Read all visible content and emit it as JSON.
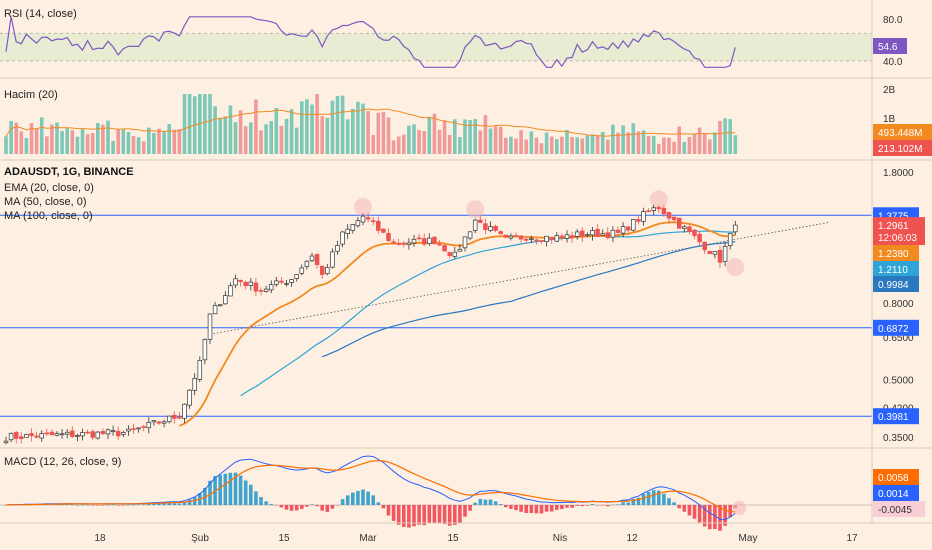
{
  "colors": {
    "background": "#fdf0e2",
    "up": "#26a69a",
    "down": "#ef5350",
    "ema20": "#f28a20",
    "ma50": "#2fa4d6",
    "ma100": "#2a78c0",
    "rsi_line": "#7e57c2",
    "rsi_band": "#e8ecd2",
    "hline": "#2962ff",
    "trendline": "#555555",
    "macd": "#2962ff",
    "signal": "#ff6d00",
    "hist_pos": "#2196c9",
    "hist_neg": "#ef3b4a"
  },
  "rsi": {
    "title": "RSI (14, close)",
    "ticks": [
      "80.0",
      "40.0"
    ],
    "value_badge": "54.6",
    "band": [
      40,
      70
    ]
  },
  "volume": {
    "title": "Hacim (20)",
    "ticks": [
      "2B",
      "1B"
    ],
    "ma_badge": "493.448M",
    "last_badge": "213.102M"
  },
  "price": {
    "symbol": "ADAUSDT, 1G, BINANCE",
    "legend": [
      "EMA (20, close, 0)",
      "MA (50, close, 0)",
      "MA (100, close, 0)"
    ],
    "ticks": [
      "1.8000",
      "0.8000",
      "0.6500",
      "0.5000",
      "0.4200",
      "0.3500"
    ],
    "tick_values": [
      1.8,
      0.8,
      0.65,
      0.5,
      0.42,
      0.35
    ],
    "last_price": "1.2961",
    "countdown": "12:06:03",
    "ema20_badge": "1.2380",
    "ma50_badge": "1.2110",
    "ma100_badge": "0.9984",
    "levels": [
      {
        "label": "1.3775",
        "value": 1.3775
      },
      {
        "label": "0.6872",
        "value": 0.6872
      },
      {
        "label": "0.3981",
        "value": 0.3981
      }
    ]
  },
  "macd": {
    "title": "MACD (12, 26, close, 9)",
    "signal_badge": "0.0058",
    "macd_badge": "0.0014",
    "hist_badge": "-0.0045"
  },
  "x_axis": {
    "labels": [
      "18",
      "Şub",
      "15",
      "Mar",
      "15",
      "Nis",
      "12",
      "May",
      "17"
    ]
  },
  "chart_data": {
    "type": "candlestick",
    "title": "ADAUSDT, 1G, BINANCE",
    "y_scale": "log",
    "close_start": 0.35,
    "close_end": 1.2961,
    "waypoints": [
      {
        "day": 0,
        "close": 0.35
      },
      {
        "day": 24,
        "close": 0.36
      },
      {
        "day": 34,
        "close": 0.4
      },
      {
        "day": 38,
        "close": 0.55
      },
      {
        "day": 40,
        "close": 0.74
      },
      {
        "day": 45,
        "close": 0.93
      },
      {
        "day": 50,
        "close": 0.87
      },
      {
        "day": 56,
        "close": 0.93
      },
      {
        "day": 60,
        "close": 1.08
      },
      {
        "day": 62,
        "close": 0.95
      },
      {
        "day": 66,
        "close": 1.22
      },
      {
        "day": 70,
        "close": 1.37
      },
      {
        "day": 76,
        "close": 1.16
      },
      {
        "day": 84,
        "close": 1.18
      },
      {
        "day": 88,
        "close": 1.07
      },
      {
        "day": 92,
        "close": 1.34
      },
      {
        "day": 98,
        "close": 1.18
      },
      {
        "day": 102,
        "close": 1.21
      },
      {
        "day": 108,
        "close": 1.2
      },
      {
        "day": 114,
        "close": 1.23
      },
      {
        "day": 120,
        "close": 1.23
      },
      {
        "day": 126,
        "close": 1.41
      },
      {
        "day": 128,
        "close": 1.45
      },
      {
        "day": 132,
        "close": 1.3
      },
      {
        "day": 136,
        "close": 1.17
      },
      {
        "day": 140,
        "close": 1.05
      },
      {
        "day": 143,
        "close": 1.2961
      }
    ],
    "horizontal_levels": [
      1.3775,
      0.6872,
      0.3981
    ],
    "indicators": {
      "ema20_last": 1.238,
      "ma50_last": 1.211,
      "ma100_last": 0.9984,
      "rsi14_last": 54.6,
      "volume_ma20_last": "493.448M",
      "volume_last": "213.102M",
      "macd_last": 0.0014,
      "signal_last": 0.0058,
      "hist_last": -0.0045
    }
  }
}
